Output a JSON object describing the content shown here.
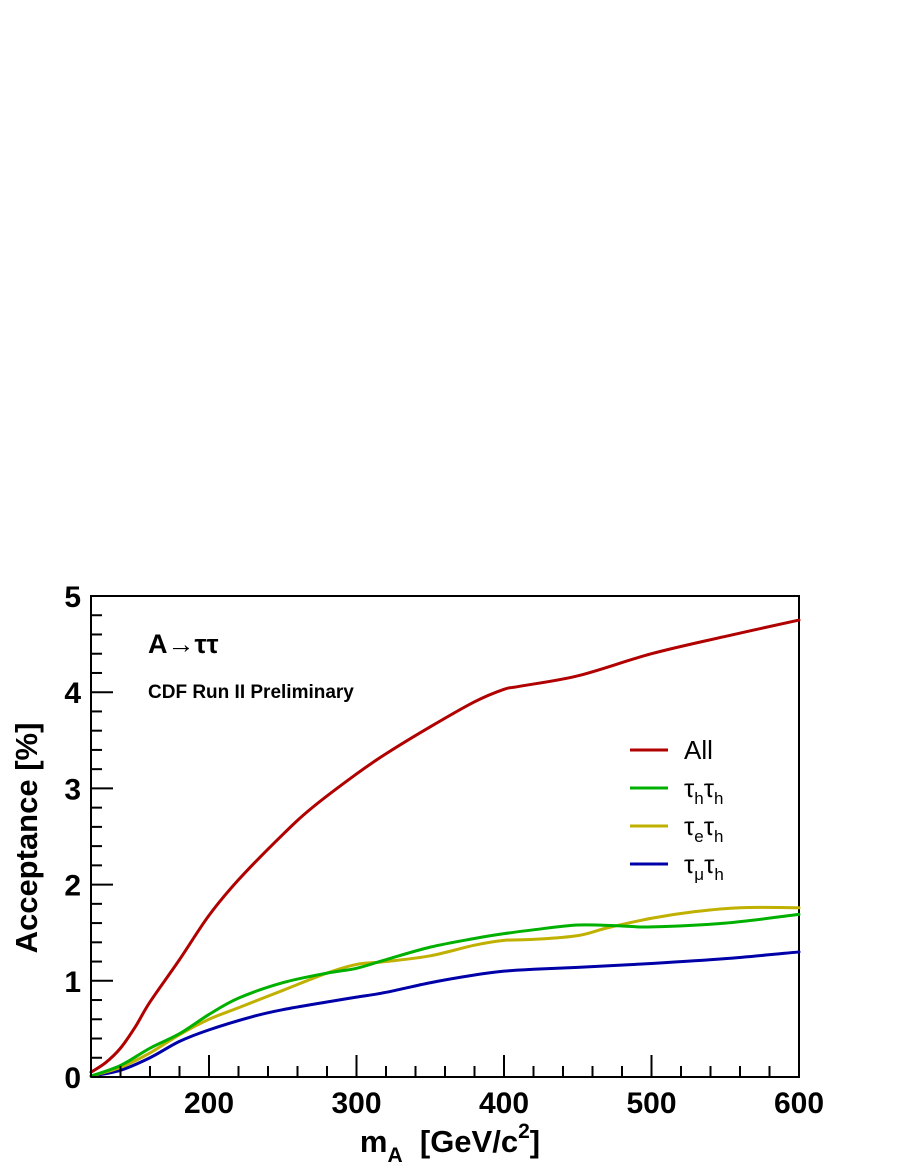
{
  "chart_data": {
    "type": "line",
    "title": "",
    "xlabel": "m_A  [GeV/c^2]",
    "ylabel": "Acceptance  [%]",
    "xlim": [
      120,
      600
    ],
    "ylim": [
      0,
      5
    ],
    "xticks": [
      200,
      300,
      400,
      500,
      600
    ],
    "yticks": [
      0,
      1,
      2,
      3,
      4,
      5
    ],
    "grid": false,
    "legend_position": "right",
    "annotations": {
      "process": "A→ττ",
      "experiment": "CDF Run II Preliminary"
    },
    "xlabel_parts": {
      "m": "m",
      "m_sub": "A",
      "units_pre": "  [GeV/c",
      "units_sup": "2",
      "units_post": "]"
    },
    "series": [
      {
        "name": "All",
        "legend_label": {
          "base": "All"
        },
        "color": "#b00000",
        "x": [
          120,
          130,
          140,
          150,
          160,
          180,
          200,
          220,
          250,
          270,
          300,
          320,
          350,
          380,
          400,
          410,
          450,
          500,
          550,
          600
        ],
        "values": [
          0.05,
          0.15,
          0.3,
          0.52,
          0.78,
          1.22,
          1.68,
          2.05,
          2.52,
          2.8,
          3.15,
          3.36,
          3.64,
          3.9,
          4.03,
          4.06,
          4.17,
          4.4,
          4.58,
          4.75
        ]
      },
      {
        "name": "τhτh",
        "legend_label": {
          "base1": "τ",
          "sub1": "h",
          "base2": "τ",
          "sub2": "h"
        },
        "color": "#00b000",
        "x": [
          120,
          140,
          160,
          180,
          200,
          220,
          250,
          280,
          300,
          320,
          350,
          380,
          400,
          420,
          450,
          480,
          500,
          550,
          600
        ],
        "values": [
          0.01,
          0.12,
          0.3,
          0.45,
          0.65,
          0.82,
          0.98,
          1.08,
          1.13,
          1.22,
          1.35,
          1.44,
          1.49,
          1.53,
          1.58,
          1.57,
          1.56,
          1.6,
          1.69
        ]
      },
      {
        "name": "τeτh",
        "legend_label": {
          "base1": "τ",
          "sub1": "e",
          "base2": "τ",
          "sub2": "h"
        },
        "color": "#c0b000",
        "x": [
          120,
          140,
          160,
          180,
          200,
          220,
          250,
          280,
          300,
          320,
          350,
          380,
          400,
          420,
          450,
          470,
          500,
          530,
          560,
          600
        ],
        "values": [
          0.01,
          0.1,
          0.25,
          0.44,
          0.6,
          0.72,
          0.9,
          1.08,
          1.17,
          1.2,
          1.26,
          1.37,
          1.42,
          1.43,
          1.47,
          1.55,
          1.65,
          1.72,
          1.76,
          1.76
        ]
      },
      {
        "name": "τμτh",
        "legend_label": {
          "base1": "τ",
          "sub1": "μ",
          "base2": "τ",
          "sub2": "h"
        },
        "color": "#0000a8",
        "x": [
          120,
          140,
          160,
          180,
          200,
          230,
          250,
          280,
          300,
          320,
          350,
          380,
          400,
          420,
          450,
          500,
          550,
          600
        ],
        "values": [
          0.01,
          0.07,
          0.2,
          0.37,
          0.49,
          0.63,
          0.7,
          0.78,
          0.83,
          0.88,
          0.98,
          1.06,
          1.1,
          1.12,
          1.14,
          1.18,
          1.23,
          1.3
        ]
      }
    ]
  }
}
